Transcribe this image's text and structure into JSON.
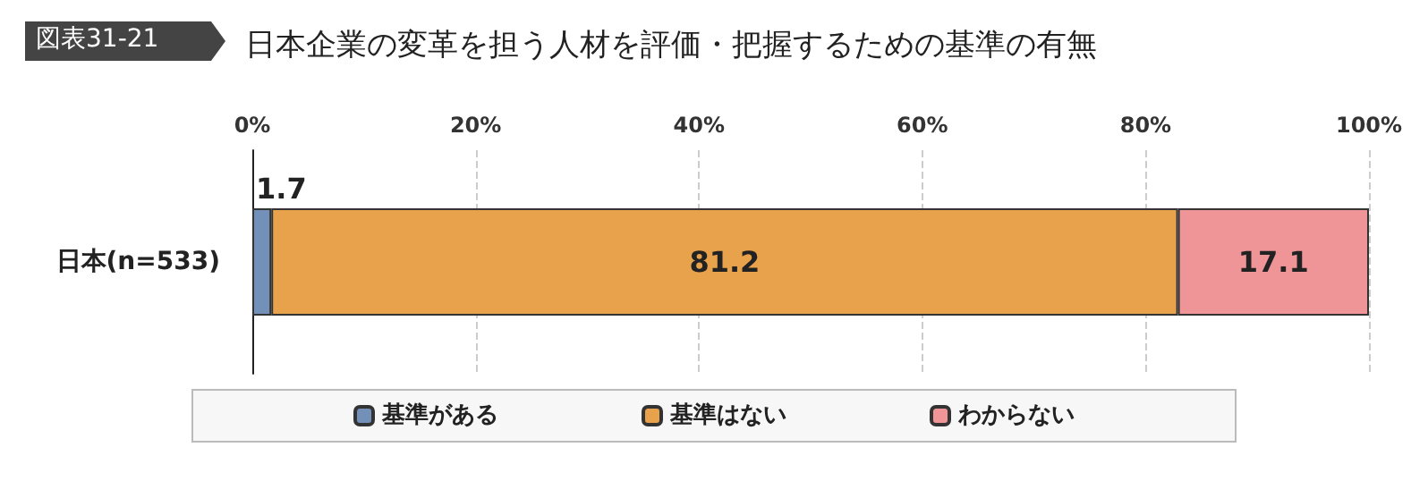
{
  "chart_data": {
    "type": "bar",
    "title": "日本企業の変革を担う人材を評価・把握するための基準の有無",
    "annotations": [
      "図表31-21"
    ],
    "orientation": "horizontal",
    "stacked": true,
    "categories": [
      "日本(n=533)"
    ],
    "series": [
      {
        "name": "基準がある",
        "color": "#7391b8",
        "values": [
          1.7
        ]
      },
      {
        "name": "基準はない",
        "color": "#e9a24c",
        "values": [
          81.2
        ]
      },
      {
        "name": "わからない",
        "color": "#f09597",
        "values": [
          17.1
        ]
      }
    ],
    "xlim": [
      0,
      100
    ],
    "xticks": [
      {
        "value": 0,
        "label": "0%"
      },
      {
        "value": 20,
        "label": "20%"
      },
      {
        "value": 40,
        "label": "40%"
      },
      {
        "value": 60,
        "label": "60%"
      },
      {
        "value": 80,
        "label": "80%"
      },
      {
        "value": 100,
        "label": "100%"
      }
    ],
    "grid": "x",
    "legend": "bottom",
    "data_labels": true
  }
}
